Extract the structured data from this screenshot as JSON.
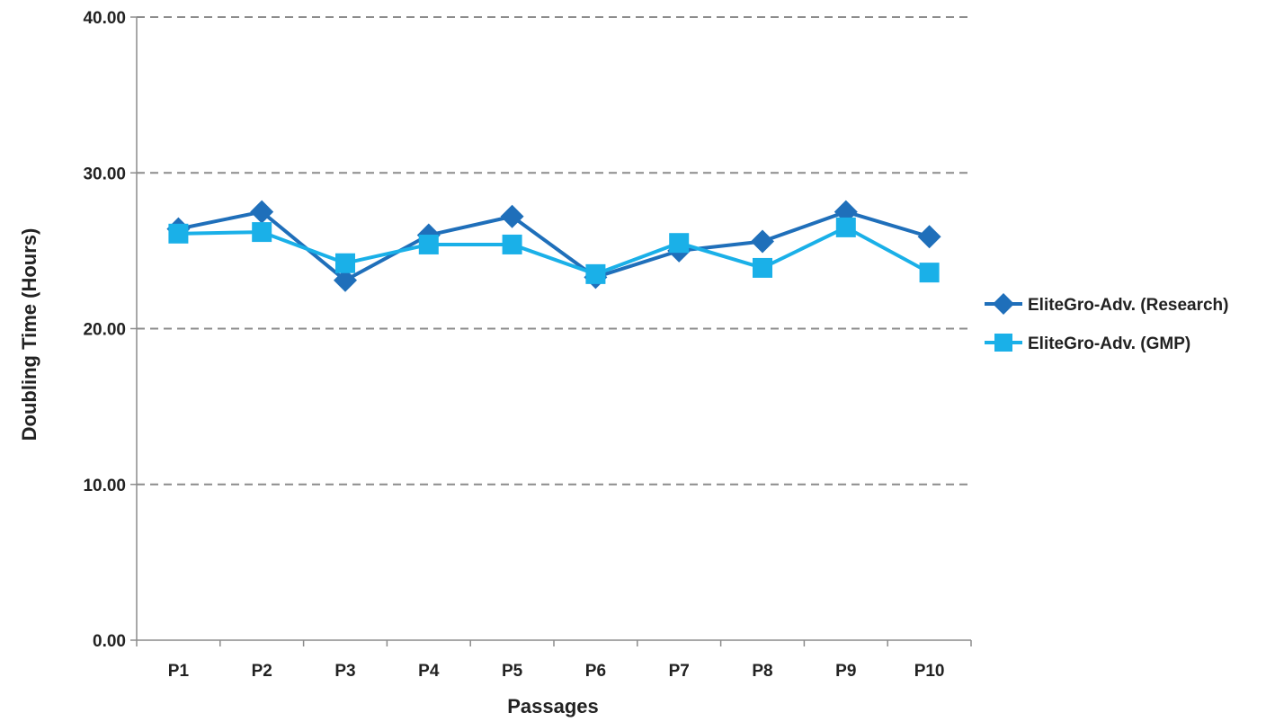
{
  "chart_data": {
    "type": "line",
    "title": "",
    "xlabel": "Passages",
    "ylabel": "Doubling Time (Hours)",
    "categories": [
      "P1",
      "P2",
      "P3",
      "P4",
      "P5",
      "P6",
      "P7",
      "P8",
      "P9",
      "P10"
    ],
    "ylim": [
      0,
      40
    ],
    "yticks": [
      "0.00",
      "10.00",
      "20.00",
      "30.00",
      "40.00"
    ],
    "grid": "horizontal dashed",
    "legend_position": "right",
    "series": [
      {
        "name": "EliteGro-Adv. (Research)",
        "marker": "diamond",
        "color": "#1f6fba",
        "values": [
          26.4,
          27.5,
          23.1,
          26.0,
          27.2,
          23.3,
          25.0,
          25.6,
          27.5,
          25.9
        ]
      },
      {
        "name": "EliteGro-Adv. (GMP)",
        "marker": "square",
        "color": "#1ab0e8",
        "values": [
          26.1,
          26.2,
          24.2,
          25.4,
          25.4,
          23.5,
          25.5,
          23.9,
          26.5,
          23.6
        ]
      }
    ]
  }
}
